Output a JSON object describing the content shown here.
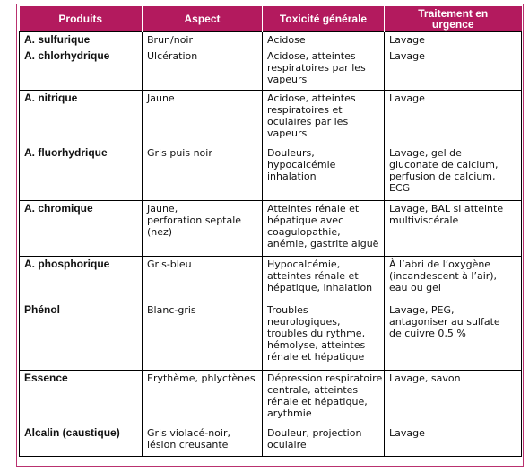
{
  "headers": [
    "Produits",
    "Aspect",
    "Toxicité générale",
    "Traitement en urgence"
  ],
  "rows": [
    {
      "produit": "A. sulfurique",
      "aspect": [
        "Brun/noir"
      ],
      "toxicite": [
        "Acidose"
      ],
      "traitement": [
        "Lavage"
      ]
    },
    {
      "produit": "A. chlorhydrique",
      "aspect": [
        "Ulcération"
      ],
      "toxicite": [
        "Acidose, atteintes",
        "respiratoires par les",
        "vapeurs"
      ],
      "traitement": [
        "Lavage"
      ]
    },
    {
      "produit": "A. nitrique",
      "aspect": [
        "Jaune"
      ],
      "toxicite": [
        "Acidose, atteintes",
        "respiratoires et",
        "oculaires par les",
        "vapeurs"
      ],
      "traitement": [
        "Lavage"
      ]
    },
    {
      "produit": "A. fluorhydrique",
      "aspect": [
        "Gris puis noir"
      ],
      "toxicite": [
        "Douleurs,",
        "hypocalcémie",
        "inhalation"
      ],
      "traitement": [
        "Lavage, gel de",
        "gluconate de calcium,",
        "perfusion de calcium,",
        "ECG"
      ]
    },
    {
      "produit": "A.  chromique",
      "aspect": [
        "Jaune,",
        "perforation septale",
        "(nez)"
      ],
      "toxicite": [
        "Atteintes rénale et",
        "hépatique avec",
        "coagulopathie,",
        "anémie, gastrite aiguë"
      ],
      "traitement": [
        "Lavage, BAL si atteinte",
        "multiviscérale"
      ]
    },
    {
      "produit": "A. phosphorique",
      "aspect": [
        "Gris-bleu"
      ],
      "toxicite": [
        "Hypocalcémie,",
        "atteintes rénale et",
        "hépatique, inhalation"
      ],
      "traitement": [
        "À l’abri de l’oxygène",
        "(incandescent à l’air),",
        "eau ou gel"
      ]
    },
    {
      "produit": "Phénol",
      "aspect": [
        "Blanc-gris"
      ],
      "toxicite": [
        "Troubles",
        "neurologiques,",
        "troubles du rythme,",
        "hémolyse, atteintes",
        "rénale et hépatique"
      ],
      "traitement": [
        "Lavage, PEG,",
        "antagoniser au sulfate",
        "de cuivre 0,5 %"
      ]
    },
    {
      "produit": "Essence",
      "aspect": [
        "Erythème, phlyctènes"
      ],
      "toxicite": [
        "Dépression respiratoire",
        "centrale, atteintes",
        "rénale et hépatique,",
        "arythmie"
      ],
      "traitement": [
        "Lavage, savon"
      ]
    },
    {
      "produit": "Alcalin (caustique)",
      "aspect": [
        "Gris violacé-noir,",
        "lésion creusante"
      ],
      "toxicite": [
        "Douleur, projection",
        "oculaire"
      ],
      "traitement": [
        "Lavage"
      ]
    }
  ]
}
